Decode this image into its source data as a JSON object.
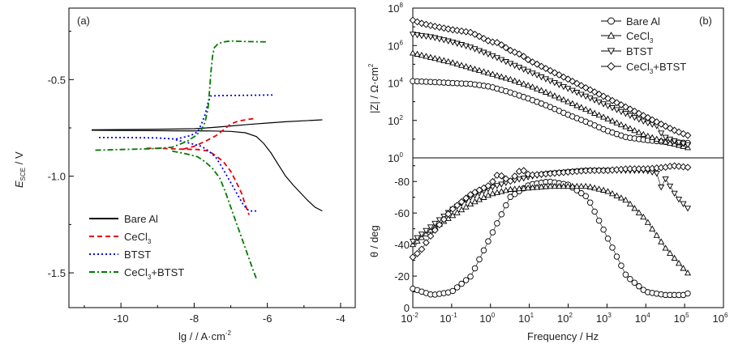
{
  "chart_data": [
    {
      "id": "a",
      "type": "line",
      "panel_label": "(a)",
      "xlabel": "lg / / A·cm",
      "xlabel_sup": "-2",
      "ylabel_main": "E",
      "ylabel_sub": "SCE",
      "ylabel_rest": " / V",
      "xlim": [
        -11.42,
        -3.6
      ],
      "ylim": [
        -1.68,
        -0.13
      ],
      "xticks": [
        -10,
        -8,
        -6,
        -4
      ],
      "xtick_labels": [
        "-10",
        "-8",
        "-6",
        "-4"
      ],
      "xminor": [
        -11,
        -9,
        -7,
        -5
      ],
      "yticks": [
        -0.5,
        -1.0,
        -1.5
      ],
      "ytick_labels": [
        "-0.5",
        "-1.0",
        "-1.5"
      ],
      "yminor": [
        -0.25,
        -0.75,
        -1.25
      ],
      "legend_position": "bottom-left",
      "series": [
        {
          "name": "Bare Al",
          "color": "#000000",
          "dash": "solid",
          "branches": [
            {
              "x": [
                -10.8,
                -9.5,
                -8.5,
                -8.0,
                -7.5,
                -7.0,
                -6.5,
                -6.0,
                -5.5,
                -5.0,
                -4.5
              ],
              "y": [
                -0.76,
                -0.758,
                -0.756,
                -0.754,
                -0.748,
                -0.74,
                -0.732,
                -0.725,
                -0.718,
                -0.713,
                -0.708
              ]
            },
            {
              "x": [
                -10.8,
                -9.5,
                -8.5,
                -7.5,
                -7.0,
                -6.6,
                -6.3,
                -6.1,
                -5.9,
                -5.7,
                -5.5,
                -5.3,
                -5.1,
                -4.9,
                -4.7,
                -4.5
              ],
              "y": [
                -0.762,
                -0.764,
                -0.765,
                -0.766,
                -0.768,
                -0.775,
                -0.795,
                -0.83,
                -0.88,
                -0.94,
                -1.0,
                -1.045,
                -1.085,
                -1.125,
                -1.16,
                -1.18
              ]
            }
          ]
        },
        {
          "name": "CeCl3",
          "color": "#e8000b",
          "dash": "dashed",
          "branches": [
            {
              "x": [
                -9.3,
                -8.8,
                -8.3,
                -7.9,
                -7.6,
                -7.4,
                -7.2,
                -7.0,
                -6.85,
                -6.7,
                -6.6,
                -6.5
              ],
              "y": [
                -0.855,
                -0.857,
                -0.86,
                -0.862,
                -0.87,
                -0.895,
                -0.925,
                -0.975,
                -1.03,
                -1.09,
                -1.15,
                -1.2
              ]
            },
            {
              "x": [
                -8.3,
                -8.0,
                -7.7,
                -7.4,
                -7.2,
                -7.0,
                -6.8,
                -6.5,
                -6.3
              ],
              "y": [
                -0.86,
                -0.845,
                -0.82,
                -0.79,
                -0.76,
                -0.73,
                -0.715,
                -0.705,
                -0.7
              ]
            }
          ]
        },
        {
          "name": "BTST",
          "color": "#0000ee",
          "dash": "dotted",
          "branches": [
            {
              "x": [
                -10.6,
                -9.8,
                -9.0,
                -8.5,
                -8.1,
                -7.9,
                -7.8,
                -7.7,
                -7.62,
                -7.55,
                -7.3,
                -7.0,
                -6.5,
                -6.0,
                -5.8
              ],
              "y": [
                -0.8,
                -0.8,
                -0.802,
                -0.808,
                -0.79,
                -0.77,
                -0.73,
                -0.68,
                -0.62,
                -0.585,
                -0.583,
                -0.582,
                -0.581,
                -0.58,
                -0.58
              ]
            },
            {
              "x": [
                -8.5,
                -8.1,
                -7.8,
                -7.6,
                -7.4,
                -7.25,
                -7.1,
                -6.95,
                -6.8,
                -6.65,
                -6.5,
                -6.3
              ],
              "y": [
                -0.812,
                -0.83,
                -0.845,
                -0.87,
                -0.905,
                -0.95,
                -1.0,
                -1.05,
                -1.1,
                -1.15,
                -1.18,
                -1.18
              ]
            }
          ]
        },
        {
          "name": "CeCl3+BTST",
          "color": "#007a00",
          "dash": "dashdot",
          "branches": [
            {
              "x": [
                -10.7,
                -10.0,
                -9.2,
                -8.6,
                -8.2,
                -7.95,
                -7.8,
                -7.7,
                -7.62,
                -7.58,
                -7.54,
                -7.5,
                -7.45,
                -7.35,
                -7.2,
                -7.0,
                -6.6,
                -6.0
              ],
              "y": [
                -0.865,
                -0.862,
                -0.858,
                -0.85,
                -0.82,
                -0.79,
                -0.76,
                -0.72,
                -0.65,
                -0.56,
                -0.46,
                -0.38,
                -0.335,
                -0.315,
                -0.305,
                -0.3,
                -0.303,
                -0.305
              ]
            },
            {
              "x": [
                -8.6,
                -8.2,
                -7.9,
                -7.7,
                -7.5,
                -7.3,
                -7.15,
                -7.0,
                -6.85,
                -6.7,
                -6.55,
                -6.4,
                -6.3
              ],
              "y": [
                -0.87,
                -0.885,
                -0.9,
                -0.925,
                -0.96,
                -1.01,
                -1.08,
                -1.16,
                -1.24,
                -1.32,
                -1.4,
                -1.48,
                -1.53
              ]
            }
          ]
        }
      ]
    },
    {
      "id": "b",
      "type": "scatter",
      "panel_label": "(b)",
      "xlabel": "Frequency / Hz",
      "xscale": "log",
      "xlim_log10": [
        -2,
        6
      ],
      "xtick_log10": [
        -2,
        -1,
        0,
        1,
        2,
        3,
        4,
        5,
        6
      ],
      "legend_position": "top-right",
      "upper": {
        "ylabel": "|Z| / Ω·cm",
        "ylabel_sup": "2",
        "yscale": "log",
        "ylim_log10": [
          0,
          8
        ],
        "ytick_log10": [
          0,
          2,
          4,
          6,
          8
        ],
        "yminor_log10": [
          1,
          3,
          5,
          7
        ]
      },
      "lower": {
        "ylabel": "θ / deg",
        "ylim": [
          0,
          -95
        ],
        "yticks": [
          0,
          -20,
          -40,
          -60,
          -80
        ],
        "ytick_labels": [
          "0",
          "-20",
          "-40",
          "-60",
          "-80"
        ],
        "yminor": [
          -10,
          -30,
          -50,
          -70,
          -90
        ]
      },
      "series": [
        {
          "name": "Bare Al",
          "marker": "circle",
          "logf": [
            -2,
            -1.5,
            -1,
            -0.5,
            0,
            0.5,
            1,
            1.5,
            2,
            2.5,
            3,
            3.5,
            4,
            4.5,
            5,
            5.08
          ],
          "log_absZ": [
            4.1,
            4.05,
            4.0,
            3.95,
            3.8,
            3.5,
            3.15,
            2.75,
            2.3,
            1.9,
            1.45,
            1.1,
            0.95,
            0.85,
            0.8,
            0.8
          ],
          "phase": [
            -12,
            -8,
            -10,
            -20,
            -45,
            -70,
            -78,
            -80,
            -78,
            -70,
            -45,
            -20,
            -10,
            -8,
            -8,
            -9
          ]
        },
        {
          "name": "CeCl3",
          "marker": "triangle-up",
          "logf": [
            -2,
            -1.5,
            -1,
            -0.5,
            0,
            0.5,
            1,
            1.5,
            2,
            2.5,
            3,
            3.5,
            4,
            4.5,
            5,
            5.08
          ],
          "log_absZ": [
            5.6,
            5.35,
            5.1,
            4.8,
            4.5,
            4.2,
            3.85,
            3.45,
            3.0,
            2.55,
            2.1,
            1.65,
            1.2,
            0.85,
            0.6,
            0.55
          ],
          "phase": [
            -40,
            -50,
            -58,
            -66,
            -72,
            -75,
            -76,
            -77,
            -77,
            -77,
            -74,
            -68,
            -56,
            -38,
            -24,
            -22
          ]
        },
        {
          "name": "BTST",
          "marker": "triangle-down",
          "logf": [
            -2,
            -1.5,
            -1,
            -0.5,
            0,
            0.5,
            1,
            1.5,
            2,
            2.5,
            3,
            3.5,
            4,
            4.3,
            4.4,
            4.5,
            4.8,
            5.08
          ],
          "log_absZ": [
            6.6,
            6.45,
            6.2,
            5.9,
            5.5,
            5.05,
            4.6,
            4.15,
            3.7,
            3.25,
            2.8,
            2.35,
            1.9,
            1.7,
            1.3,
            1.1,
            0.85,
            0.7
          ],
          "phase": [
            -42,
            -52,
            -62,
            -70,
            -76,
            -80,
            -83,
            -85,
            -86,
            -87,
            -87,
            -87,
            -87,
            -85,
            -76,
            -82,
            -70,
            -63
          ]
        },
        {
          "name": "CeCl3+BTST",
          "marker": "diamond",
          "logf": [
            -2,
            -1.8,
            -1.5,
            -1,
            -0.5,
            0,
            0.2,
            0.5,
            0.8,
            1,
            1.5,
            2,
            2.5,
            3,
            3.5,
            4,
            4.5,
            4.7,
            5.08
          ],
          "log_absZ": [
            7.35,
            7.2,
            7.05,
            6.85,
            6.7,
            6.2,
            6.15,
            5.75,
            5.5,
            5.2,
            4.7,
            4.2,
            3.7,
            3.2,
            2.7,
            2.2,
            1.7,
            1.5,
            1.2
          ],
          "phase": [
            -32,
            -36,
            -47,
            -62,
            -72,
            -78,
            -85,
            -80,
            -88,
            -84,
            -85,
            -86,
            -87,
            -87,
            -88,
            -88,
            -89,
            -90,
            -89
          ]
        }
      ]
    }
  ]
}
